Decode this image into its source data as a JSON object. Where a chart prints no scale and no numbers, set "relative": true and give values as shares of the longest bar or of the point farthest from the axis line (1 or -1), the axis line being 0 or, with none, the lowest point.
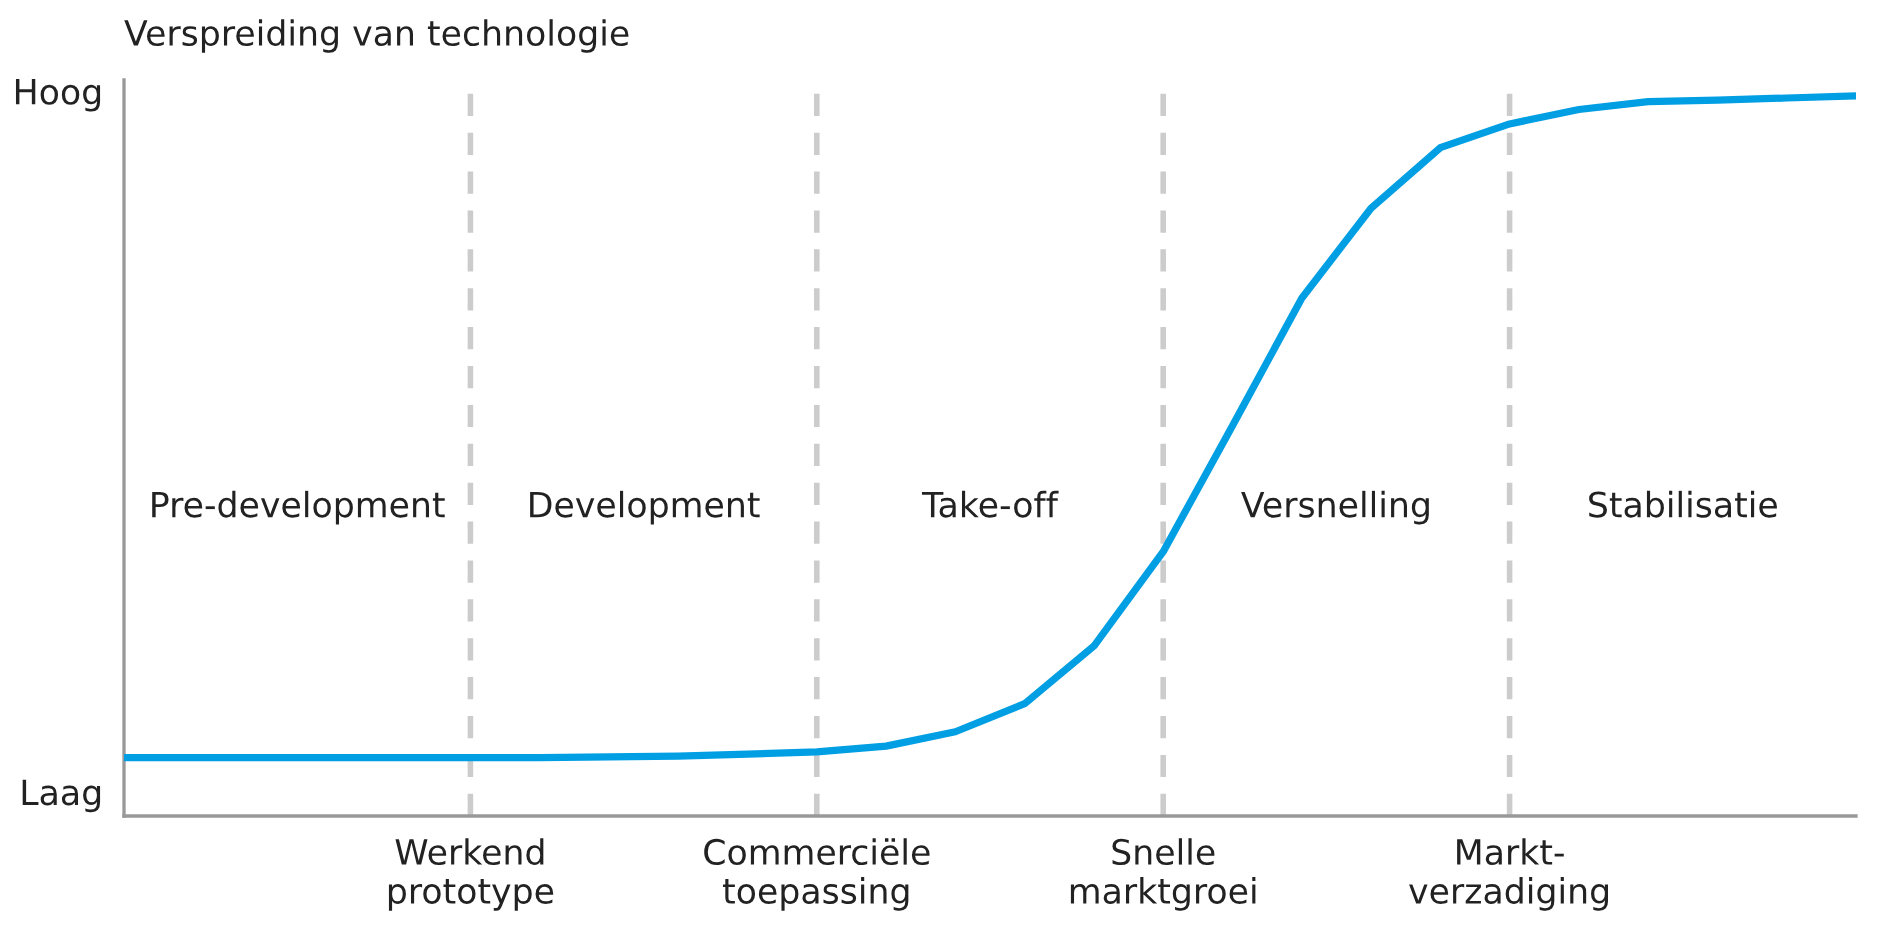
{
  "chart_data": {
    "type": "line",
    "title": "Verspreiding van technologie",
    "relative": true,
    "categories": [
      null,
      null,
      null,
      null,
      null,
      "Werkend\nprototype",
      null,
      null,
      null,
      null,
      "Commerciële\ntoepassing",
      null,
      null,
      null,
      null,
      "Snelle\nmarktgroei",
      null,
      null,
      null,
      null,
      "Markt-\nverzadiging",
      null,
      null,
      null,
      null,
      null
    ],
    "series": [
      {
        "color": "#009fe3",
        "values": [
          0.081,
          0.081,
          0.081,
          0.081,
          0.081,
          0.081,
          0.081,
          0.082,
          0.083,
          0.086,
          0.089,
          0.097,
          0.117,
          0.156,
          0.236,
          0.367,
          0.542,
          0.719,
          0.844,
          0.928,
          0.961,
          0.981,
          0.992,
          0.994,
          0.997,
          1.0
        ]
      }
    ],
    "annotations": [
      "Pre-development",
      "Development",
      "Take-off",
      "Versnelling",
      "Stabilisatie",
      "Laag",
      "Hoog"
    ],
    "grid": "x",
    "legend": false,
    "marker": "none",
    "line_style": "solid"
  }
}
